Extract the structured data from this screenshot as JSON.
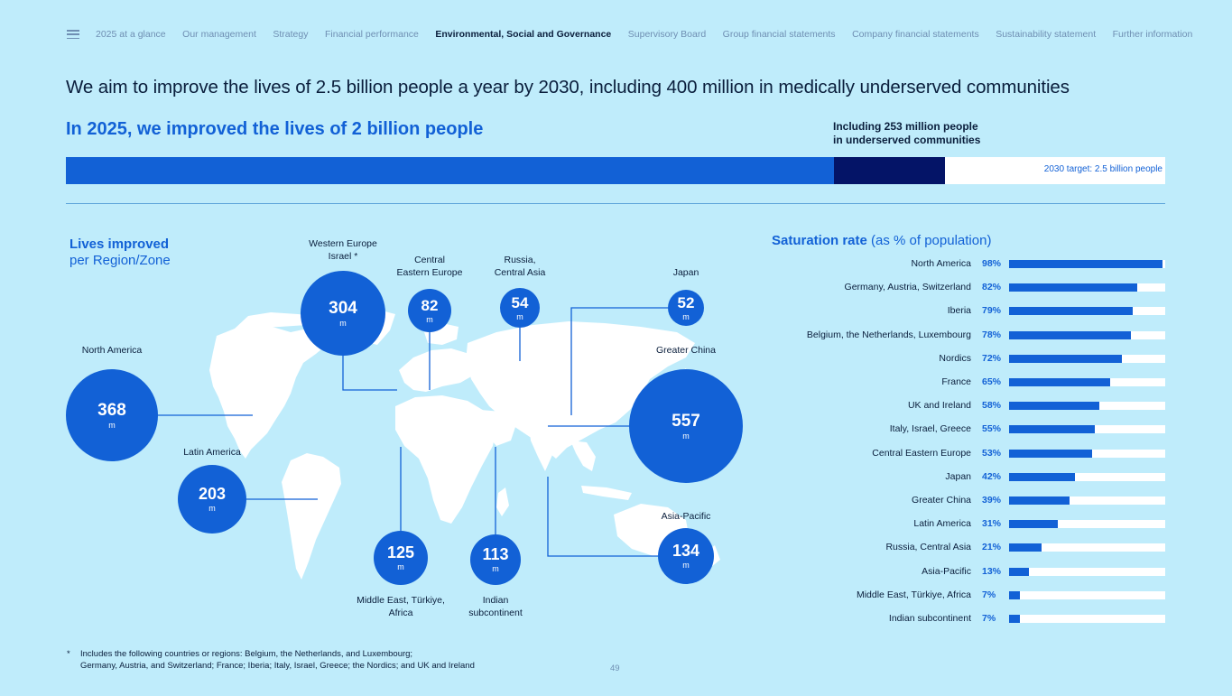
{
  "nav": {
    "items": [
      {
        "label": "2025 at a glance",
        "active": false
      },
      {
        "label": "Our management",
        "active": false
      },
      {
        "label": "Strategy",
        "active": false
      },
      {
        "label": "Financial performance",
        "active": false
      },
      {
        "label": "Environmental, Social and Governance",
        "active": true
      },
      {
        "label": "Supervisory Board",
        "active": false
      },
      {
        "label": "Group financial statements",
        "active": false
      },
      {
        "label": "Company financial statements",
        "active": false
      },
      {
        "label": "Sustainability statement",
        "active": false
      },
      {
        "label": "Further information",
        "active": false
      }
    ]
  },
  "headline": "We aim to improve the lives of 2.5 billion people a year by 2030, including 400 million in medically underserved communities",
  "subhead": "In 2025, we improved the lives of 2 billion people",
  "underserved": {
    "line1": "Including 253 million people",
    "line2": "in underserved communities"
  },
  "progress": {
    "target_label": "2030 target: 2.5 billion people",
    "improved_billion": 2.0,
    "underserved_billion": 0.253,
    "target_billion": 2.5,
    "colors": {
      "improved": "#1261d6",
      "underserved": "#041467",
      "remaining": "#ffffff"
    }
  },
  "map": {
    "title_bold": "Lives improved",
    "title_rest": "per Region/Zone",
    "unit": "m",
    "regions": [
      {
        "id": "north-america",
        "label1": "North America",
        "label2": "",
        "value": "368"
      },
      {
        "id": "latin-america",
        "label1": "Latin America",
        "label2": "",
        "value": "203"
      },
      {
        "id": "western-europe",
        "label1": "Western Europe",
        "label2": "Israel *",
        "value": "304"
      },
      {
        "id": "central-eastern-europe",
        "label1": "Central",
        "label2": "Eastern Europe",
        "value": "82"
      },
      {
        "id": "russia-central-asia",
        "label1": "Russia,",
        "label2": "Central Asia",
        "value": "54"
      },
      {
        "id": "japan",
        "label1": "Japan",
        "label2": "",
        "value": "52"
      },
      {
        "id": "greater-china",
        "label1": "Greater China",
        "label2": "",
        "value": "557"
      },
      {
        "id": "asia-pacific",
        "label1": "Asia-Pacific",
        "label2": "",
        "value": "134"
      },
      {
        "id": "middle-east-africa",
        "label1": "Middle East, Türkiye,",
        "label2": "Africa",
        "value": "125"
      },
      {
        "id": "indian-subcontinent",
        "label1": "Indian",
        "label2": "subcontinent",
        "value": "113"
      }
    ]
  },
  "saturation": {
    "title_bold": "Saturation rate",
    "title_rest": "(as % of population)",
    "rows": [
      {
        "label": "North America",
        "value": "98%",
        "pct": 98
      },
      {
        "label": "Germany, Austria, Switzerland",
        "value": "82%",
        "pct": 82
      },
      {
        "label": "Iberia",
        "value": "79%",
        "pct": 79
      },
      {
        "label": "Belgium, the Netherlands, Luxembourg",
        "value": "78%",
        "pct": 78
      },
      {
        "label": "Nordics",
        "value": "72%",
        "pct": 72
      },
      {
        "label": "France",
        "value": "65%",
        "pct": 65
      },
      {
        "label": "UK and Ireland",
        "value": "58%",
        "pct": 58
      },
      {
        "label": "Italy, Israel, Greece",
        "value": "55%",
        "pct": 55
      },
      {
        "label": "Central Eastern Europe",
        "value": "53%",
        "pct": 53
      },
      {
        "label": "Japan",
        "value": "42%",
        "pct": 42
      },
      {
        "label": "Greater China",
        "value": "39%",
        "pct": 39
      },
      {
        "label": "Latin America",
        "value": "31%",
        "pct": 31
      },
      {
        "label": "Russia, Central Asia",
        "value": "21%",
        "pct": 21
      },
      {
        "label": "Asia-Pacific",
        "value": "13%",
        "pct": 13
      },
      {
        "label": "Middle East, Türkiye, Africa",
        "value": "7%",
        "pct": 7
      },
      {
        "label": "Indian subcontinent",
        "value": "7%",
        "pct": 7
      }
    ]
  },
  "footnote": {
    "star": "*",
    "line1": "Includes the following countries or regions: Belgium, the Netherlands, and Luxembourg;",
    "line2": "Germany, Austria, and Switzerland; France; Iberia; Italy, Israel, Greece; the Nordics; and UK and Ireland"
  },
  "page_number": "49"
}
